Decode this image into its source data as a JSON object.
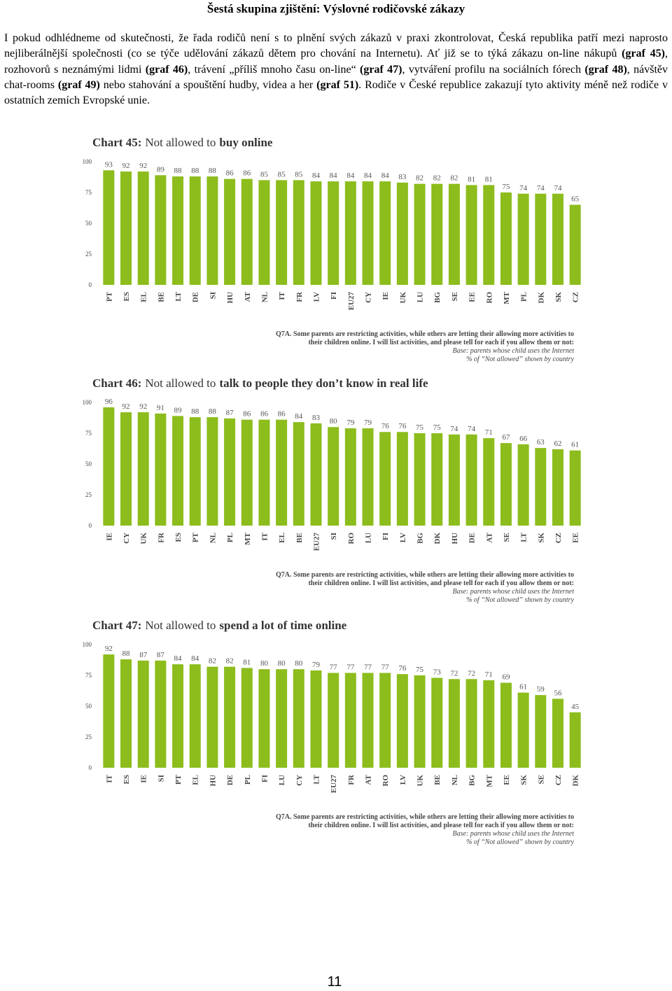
{
  "heading": "Šestá skupina zjištění: Výslovné rodičovské zákazy",
  "paragraph": [
    "I pokud odhlédneme od skutečnosti, že řada rodičů není s to plnění svých zákazů v praxi zkontrolovat, Česká republika patří mezi naprosto nejliberálnější společnosti (co se týče udělování zákazů dětem pro chování na Internetu). Ať již se to týká zákazu on-line nákupů ",
    "(graf 45)",
    ", rozhovorů s neznámými lidmi ",
    "(graf 46)",
    ", trávení „příliš mnoho času on-line“ ",
    "(graf 47)",
    ", vytváření profilu na sociálních fórech ",
    "(graf 48)",
    ", návštěv chat-rooms ",
    "(graf 49)",
    " nebo stahování a spouštění hudby, videa a her ",
    "(graf 51)",
    ". Rodiče v České republice zakazují tyto aktivity méně než rodiče v ostatních zemích Evropské unie."
  ],
  "chart_data": [
    {
      "type": "bar",
      "title": [
        "Chart 45:",
        "Not allowed to",
        "buy online"
      ],
      "categories": [
        "PT",
        "ES",
        "EL",
        "BE",
        "LT",
        "DE",
        "SI",
        "HU",
        "AT",
        "NL",
        "IT",
        "FR",
        "LV",
        "FI",
        "EU27",
        "CY",
        "IE",
        "UK",
        "LU",
        "BG",
        "SE",
        "EE",
        "RO",
        "MT",
        "PL",
        "DK",
        "SK",
        "CZ"
      ],
      "values": [
        93,
        92,
        92,
        89,
        88,
        88,
        88,
        86,
        86,
        85,
        85,
        85,
        84,
        84,
        84,
        84,
        84,
        83,
        82,
        82,
        82,
        81,
        81,
        75,
        74,
        74,
        74,
        65
      ],
      "color": "#8cbd1c",
      "ylim": [
        0,
        100
      ],
      "yticks": [
        0,
        25,
        50,
        75,
        100
      ],
      "notes": [
        "Q7A. Some parents are restricting activities, while others are letting their allowing more activities to",
        "their children online. I will list activities, and please tell for each if you allow them or not:",
        "Base: parents whose child uses the Internet",
        "% of “Not allowed” shown by country"
      ]
    },
    {
      "type": "bar",
      "title": [
        "Chart 46:",
        "Not allowed to",
        "talk to people they don’t know in real life"
      ],
      "categories": [
        "IE",
        "CY",
        "UK",
        "FR",
        "ES",
        "PT",
        "NL",
        "PL",
        "MT",
        "IT",
        "EL",
        "BE",
        "EU27",
        "SI",
        "RO",
        "LU",
        "FI",
        "LV",
        "BG",
        "DK",
        "HU",
        "DE",
        "AT",
        "SE",
        "LT",
        "SK",
        "CZ",
        "EE"
      ],
      "values": [
        96,
        92,
        92,
        91,
        89,
        88,
        88,
        87,
        86,
        86,
        86,
        84,
        83,
        80,
        79,
        79,
        76,
        76,
        75,
        75,
        74,
        74,
        71,
        67,
        66,
        63,
        62,
        61
      ],
      "color": "#8cbd1c",
      "ylim": [
        0,
        100
      ],
      "yticks": [
        0,
        25,
        50,
        75,
        100
      ],
      "notes": [
        "Q7A. Some parents are restricting activities, while others are letting their allowing more activities to",
        "their children online. I will list activities, and please tell for each if you allow them or not:",
        "Base: parents whose child uses the Internet",
        "% of “Not allowed” shown by country"
      ]
    },
    {
      "type": "bar",
      "title": [
        "Chart 47:",
        "Not allowed to",
        "spend a lot of time online"
      ],
      "categories": [
        "IT",
        "ES",
        "IE",
        "SI",
        "PT",
        "EL",
        "HU",
        "DE",
        "PL",
        "FI",
        "LU",
        "CY",
        "LT",
        "EU27",
        "FR",
        "AT",
        "RO",
        "LV",
        "UK",
        "BE",
        "NL",
        "BG",
        "MT",
        "EE",
        "SK",
        "SE",
        "CZ",
        "DK"
      ],
      "values": [
        92,
        88,
        87,
        87,
        84,
        84,
        82,
        82,
        81,
        80,
        80,
        80,
        79,
        77,
        77,
        77,
        77,
        76,
        75,
        73,
        72,
        72,
        71,
        69,
        61,
        59,
        56,
        45
      ],
      "color": "#8cbd1c",
      "ylim": [
        0,
        100
      ],
      "yticks": [
        0,
        25,
        50,
        75,
        100
      ],
      "notes": [
        "Q7A. Some parents are restricting activities, while others are letting their allowing more activities to",
        "their children online. I will list activities, and please tell for each if you allow them or not:",
        "Base: parents whose child uses the Internet",
        "% of “Not allowed” shown by country"
      ]
    }
  ],
  "page_number": "11"
}
